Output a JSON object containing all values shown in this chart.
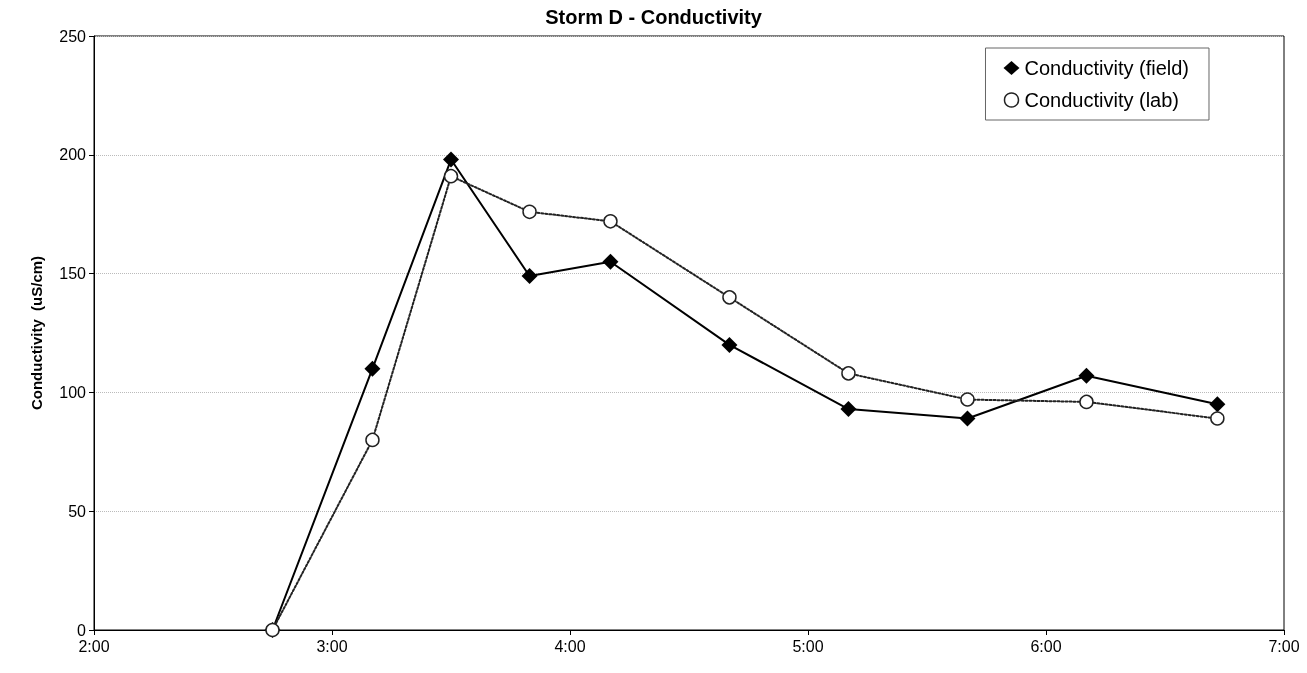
{
  "chart_data": {
    "type": "line",
    "title": "Storm D - Conductivity",
    "ylabel": "Conductivity  (uS/cm)",
    "x": [
      2.75,
      3.17,
      3.5,
      3.83,
      4.17,
      4.67,
      5.17,
      5.67,
      6.17,
      6.72
    ],
    "series": [
      {
        "name": "Conductivity (field)",
        "color": "#000000",
        "marker": "diamond",
        "line_style": "solid",
        "values": [
          0,
          110,
          198,
          149,
          155,
          120,
          93,
          89,
          107,
          95
        ]
      },
      {
        "name": "Conductivity (lab)",
        "color": "#222222",
        "marker": "circle",
        "line_style": "dotted",
        "values": [
          0,
          80,
          191,
          176,
          172,
          140,
          108,
          97,
          96,
          89
        ]
      }
    ],
    "xlim": [
      2,
      7
    ],
    "xticks": [
      {
        "value": 2,
        "label": "2:00"
      },
      {
        "value": 3,
        "label": "3:00"
      },
      {
        "value": 4,
        "label": "4:00"
      },
      {
        "value": 5,
        "label": "5:00"
      },
      {
        "value": 6,
        "label": "6:00"
      },
      {
        "value": 7,
        "label": "7:00"
      }
    ],
    "ylim": [
      0,
      250
    ],
    "yticks": [
      0,
      50,
      100,
      150,
      200,
      250
    ],
    "grid": "y",
    "legend": "top right"
  }
}
